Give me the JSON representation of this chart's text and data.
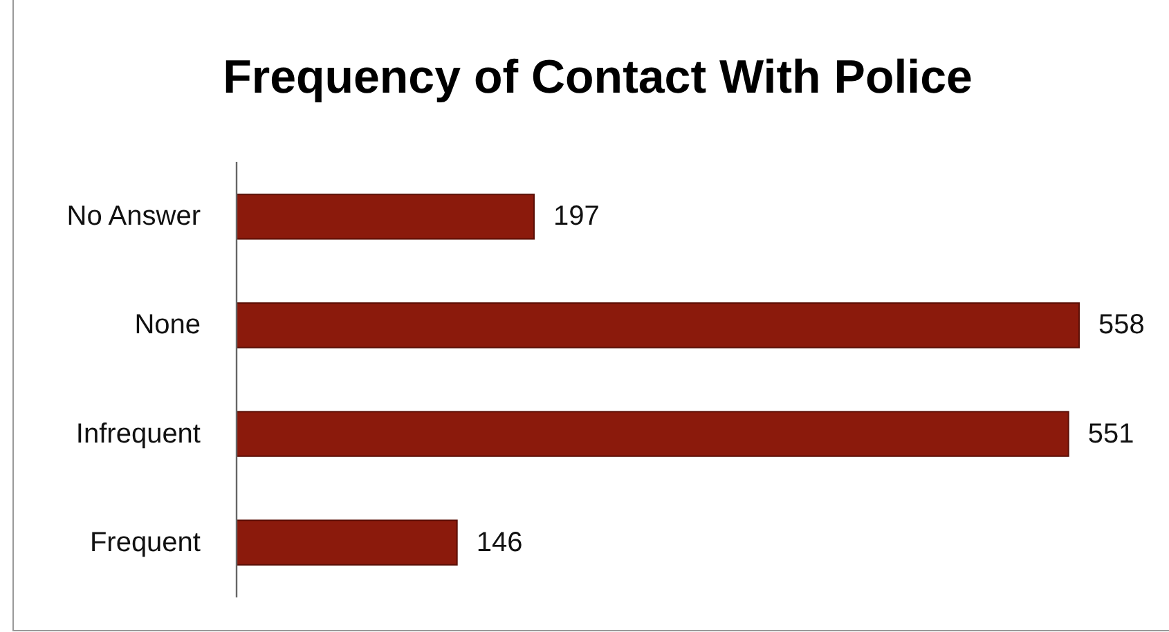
{
  "chart_data": {
    "type": "bar",
    "orientation": "horizontal",
    "title": "Frequency of Contact With Police",
    "categories": [
      "No Answer",
      "None",
      "Infrequent",
      "Frequent"
    ],
    "values": [
      197,
      558,
      551,
      146
    ],
    "color": "#8b1a0c",
    "data_labels": true
  }
}
